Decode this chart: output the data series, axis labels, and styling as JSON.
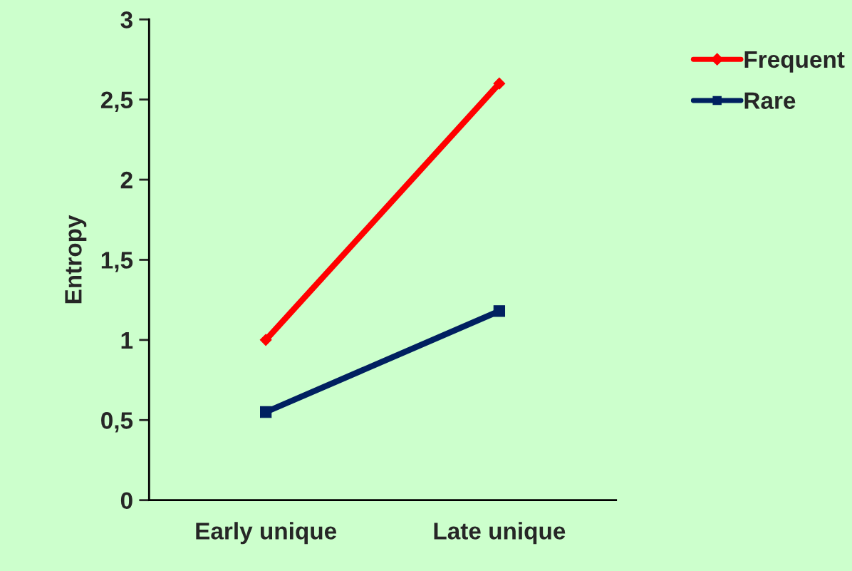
{
  "chart_data": {
    "type": "line",
    "ylabel": "Entropy",
    "categories": [
      "Early unique",
      "Late unique"
    ],
    "series": [
      {
        "name": "Frequent",
        "color": "#ff0000",
        "values": [
          1.0,
          2.6
        ],
        "marker": "diamond"
      },
      {
        "name": "Rare",
        "color": "#002060",
        "values": [
          0.55,
          1.18
        ],
        "marker": "square"
      }
    ],
    "ylim": [
      0,
      3
    ],
    "yticks": [
      0,
      {
        "value": 0.5,
        "label": "0,5"
      },
      1,
      {
        "value": 1.5,
        "label": "1,5"
      },
      2,
      {
        "value": 2.5,
        "label": "2,5"
      },
      3
    ],
    "grid": false,
    "legend": "top right",
    "line_style": "solid"
  }
}
